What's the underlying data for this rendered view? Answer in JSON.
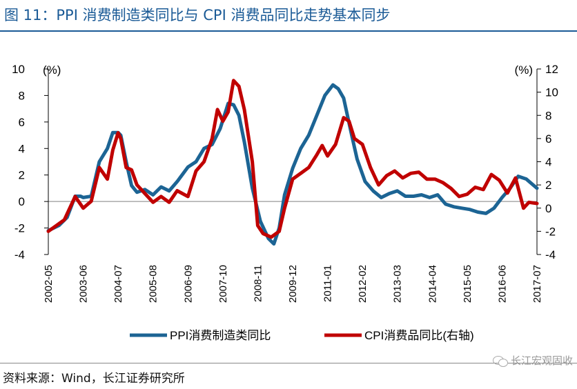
{
  "header": {
    "title": "图 11：PPI 消费制造类同比与 CPI 消费品同比走势基本同步"
  },
  "footer": {
    "source": "资料来源：Wind，长江证券研究所",
    "watermark": "长江宏观固收"
  },
  "chart_data": {
    "type": "line",
    "unit_left": "(%)",
    "unit_right": "(%)",
    "ylim_left": [
      -4,
      10
    ],
    "yticks_left": [
      -4,
      -2,
      0,
      2,
      4,
      6,
      8,
      10
    ],
    "ylim_right": [
      -4,
      12
    ],
    "yticks_right": [
      -4,
      -2,
      0,
      2,
      4,
      6,
      8,
      10,
      12
    ],
    "xlim": [
      "2002-05",
      "2017-07"
    ],
    "xtick_labels": [
      "2002-05",
      "2003-06",
      "2004-07",
      "2005-08",
      "2006-09",
      "2007-10",
      "2008-11",
      "2009-12",
      "2011-01",
      "2012-02",
      "2013-03",
      "2014-04",
      "2015-05",
      "2016-06",
      "2017-07"
    ],
    "legend_position": "bottom",
    "grid": false,
    "colors": {
      "ppi": "#1c6494",
      "cpi": "#c00000",
      "axis": "#000000",
      "zero_line": "#999999"
    },
    "series": [
      {
        "name": "PPI消费制造类同比",
        "axis": "left",
        "x": [
          "2002-05",
          "2002-09",
          "2002-12",
          "2003-03",
          "2003-05",
          "2003-06",
          "2003-09",
          "2003-12",
          "2004-03",
          "2004-05",
          "2004-07",
          "2004-08",
          "2004-10",
          "2004-12",
          "2005-02",
          "2005-05",
          "2005-08",
          "2005-11",
          "2006-02",
          "2006-05",
          "2006-09",
          "2006-12",
          "2007-03",
          "2007-06",
          "2007-09",
          "2007-12",
          "2008-02",
          "2008-04",
          "2008-06",
          "2008-09",
          "2008-12",
          "2009-03",
          "2009-05",
          "2009-07",
          "2009-09",
          "2009-12",
          "2010-03",
          "2010-06",
          "2010-09",
          "2010-12",
          "2011-03",
          "2011-05",
          "2011-07",
          "2011-10",
          "2011-12",
          "2012-03",
          "2012-06",
          "2012-09",
          "2012-12",
          "2013-03",
          "2013-06",
          "2013-09",
          "2013-12",
          "2014-03",
          "2014-06",
          "2014-09",
          "2014-12",
          "2015-03",
          "2015-06",
          "2015-09",
          "2015-12",
          "2016-03",
          "2016-06",
          "2016-09",
          "2016-12",
          "2017-03",
          "2017-07"
        ],
        "y": [
          -2.2,
          -1.8,
          -1.2,
          0.4,
          0.4,
          0.3,
          0.4,
          3.0,
          4.0,
          5.2,
          5.2,
          5.0,
          3.0,
          1.2,
          0.7,
          0.9,
          0.5,
          1.1,
          0.8,
          1.5,
          2.6,
          3.0,
          4.0,
          4.3,
          5.5,
          7.4,
          7.3,
          6.5,
          4.5,
          1.0,
          -1.5,
          -2.8,
          -3.2,
          -2.0,
          0.5,
          2.5,
          4.0,
          5.0,
          6.5,
          8.0,
          8.8,
          8.5,
          7.8,
          5.0,
          3.2,
          1.5,
          0.8,
          0.3,
          0.6,
          0.8,
          0.4,
          0.4,
          0.5,
          0.3,
          0.5,
          -0.2,
          -0.4,
          -0.5,
          -0.6,
          -0.8,
          -0.9,
          -0.5,
          0.3,
          1.0,
          1.9,
          1.7,
          1.0
        ]
      },
      {
        "name": "CPI消费品同比(右轴)",
        "axis": "right",
        "x": [
          "2002-05",
          "2002-08",
          "2002-11",
          "2003-03",
          "2003-06",
          "2003-09",
          "2003-12",
          "2004-03",
          "2004-05",
          "2004-07",
          "2004-08",
          "2004-10",
          "2004-12",
          "2005-02",
          "2005-04",
          "2005-08",
          "2005-11",
          "2006-02",
          "2006-05",
          "2006-09",
          "2006-12",
          "2007-03",
          "2007-06",
          "2007-08",
          "2007-10",
          "2007-12",
          "2008-02",
          "2008-04",
          "2008-06",
          "2008-09",
          "2008-11",
          "2009-01",
          "2009-04",
          "2009-07",
          "2009-09",
          "2009-12",
          "2010-03",
          "2010-06",
          "2010-09",
          "2010-11",
          "2011-01",
          "2011-04",
          "2011-07",
          "2011-09",
          "2011-11",
          "2012-02",
          "2012-05",
          "2012-08",
          "2012-11",
          "2013-02",
          "2013-05",
          "2013-08",
          "2013-11",
          "2014-02",
          "2014-05",
          "2014-08",
          "2014-11",
          "2015-02",
          "2015-05",
          "2015-08",
          "2015-11",
          "2016-02",
          "2016-05",
          "2016-08",
          "2016-11",
          "2017-02",
          "2017-04",
          "2017-07"
        ],
        "y": [
          -2.0,
          -1.5,
          -1.0,
          1.0,
          0.0,
          0.6,
          3.5,
          2.5,
          5.0,
          6.5,
          6.0,
          3.5,
          3.3,
          2.0,
          1.5,
          0.5,
          1.0,
          0.5,
          1.5,
          1.0,
          3.2,
          4.0,
          6.0,
          8.5,
          7.5,
          8.3,
          11.0,
          10.5,
          8.5,
          4.0,
          -1.5,
          -2.2,
          -2.5,
          -2.0,
          0.0,
          2.5,
          3.0,
          3.5,
          4.6,
          5.4,
          4.5,
          5.5,
          7.8,
          7.5,
          6.0,
          5.5,
          3.5,
          2.0,
          2.8,
          3.2,
          2.6,
          3.0,
          3.1,
          2.5,
          2.5,
          2.2,
          1.7,
          1.0,
          1.2,
          1.8,
          1.6,
          2.9,
          2.4,
          1.3,
          2.6,
          0.0,
          0.5,
          0.4
        ]
      }
    ]
  }
}
